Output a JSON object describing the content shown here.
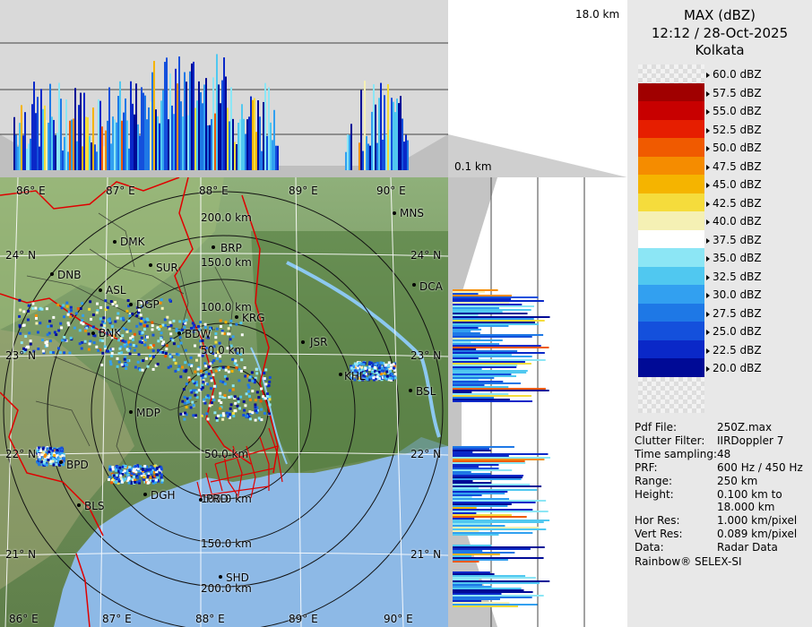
{
  "header": {
    "product": "MAX (dBZ)",
    "datetime": "12:12 / 28-Oct-2025",
    "station": "Kolkata"
  },
  "height_labels": {
    "top": "18.0 km",
    "bottom": "0.1 km"
  },
  "legend": {
    "unit": "dBZ",
    "entries": [
      {
        "label": "60.0 dBZ",
        "color": "#f2f2f2"
      },
      {
        "label": "57.5 dBZ",
        "color": "#a00000"
      },
      {
        "label": "55.0 dBZ",
        "color": "#c80000"
      },
      {
        "label": "52.5 dBZ",
        "color": "#e61e00"
      },
      {
        "label": "50.0 dBZ",
        "color": "#f05a00"
      },
      {
        "label": "47.5 dBZ",
        "color": "#f58c00"
      },
      {
        "label": "45.0 dBZ",
        "color": "#f5b400"
      },
      {
        "label": "42.5 dBZ",
        "color": "#f5dc3c"
      },
      {
        "label": "40.0 dBZ",
        "color": "#f5f0b4"
      },
      {
        "label": "37.5 dBZ",
        "color": "#ffffff"
      },
      {
        "label": "35.0 dBZ",
        "color": "#8ce6f5"
      },
      {
        "label": "32.5 dBZ",
        "color": "#50c8f0"
      },
      {
        "label": "30.0 dBZ",
        "color": "#32a0f0"
      },
      {
        "label": "27.5 dBZ",
        "color": "#1e78e6"
      },
      {
        "label": "25.0 dBZ",
        "color": "#1450dc"
      },
      {
        "label": "22.5 dBZ",
        "color": "#0a28c8"
      },
      {
        "label": "20.0 dBZ",
        "color": "#000a96"
      }
    ]
  },
  "info": [
    {
      "key": "Pdf File:",
      "value": "250Z.max"
    },
    {
      "key": "Clutter Filter:",
      "value": "IIRDoppler 7"
    },
    {
      "key": "Time sampling:",
      "value": "48"
    },
    {
      "key": "PRF:",
      "value": "600 Hz / 450 Hz"
    },
    {
      "key": "Range:",
      "value": "250 km"
    },
    {
      "key": "Height:",
      "value": "0.100 km to"
    },
    {
      "key": "",
      "value": "18.000 km"
    },
    {
      "key": "Hor Res:",
      "value": "1.000 km/pixel"
    },
    {
      "key": "Vert Res:",
      "value": "0.089 km/pixel"
    },
    {
      "key": "Data:",
      "value": "Radar Data"
    }
  ],
  "footer": "Rainbow® SELEX-SI",
  "map": {
    "lon_labels": [
      "86° E",
      "87° E",
      "88° E",
      "89° E",
      "90° E"
    ],
    "lat_labels": [
      "24° N",
      "23° N",
      "22° N",
      "21° N"
    ],
    "range_labels": [
      "50.0 km",
      "100.0 km",
      "150.0 km",
      "200.0 km"
    ],
    "places": [
      {
        "name": "MNS"
      },
      {
        "name": "DMK"
      },
      {
        "name": "BRP"
      },
      {
        "name": "DNB"
      },
      {
        "name": "SUR"
      },
      {
        "name": "DCA"
      },
      {
        "name": "ASL"
      },
      {
        "name": "DGP"
      },
      {
        "name": "KRG"
      },
      {
        "name": "BNK"
      },
      {
        "name": "BDW"
      },
      {
        "name": "JSR"
      },
      {
        "name": "KHL"
      },
      {
        "name": "BSL"
      },
      {
        "name": "MDP"
      },
      {
        "name": "BPD"
      },
      {
        "name": "DGH"
      },
      {
        "name": "BLS"
      },
      {
        "name": "SHD"
      },
      {
        "name": "PRD"
      }
    ]
  }
}
